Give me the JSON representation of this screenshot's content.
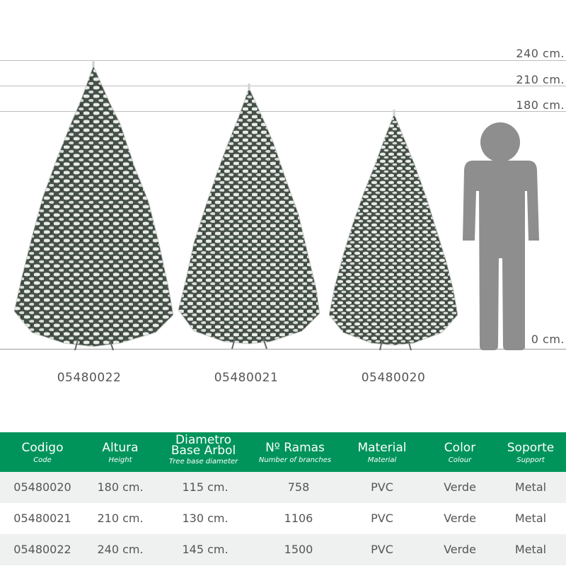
{
  "height_markers": [
    {
      "label": "240 cm."
    },
    {
      "label": "210 cm."
    },
    {
      "label": "180 cm."
    },
    {
      "label": "0 cm."
    }
  ],
  "trees": [
    {
      "code": "05480022"
    },
    {
      "code": "05480021"
    },
    {
      "code": "05480020"
    }
  ],
  "colors": {
    "header_green": "#00945a",
    "row_alt": "#eef1f0",
    "person": "#8e8e8e",
    "foliage_dark": "#3f4a42",
    "snow": "#e9ece8"
  },
  "table": {
    "headers": [
      {
        "main": "Codigo",
        "sub": "Code"
      },
      {
        "main": "Altura",
        "sub": "Height"
      },
      {
        "main": "Diametro Base Arbol",
        "sub": "Tree base diameter"
      },
      {
        "main": "Nº Ramas",
        "sub": "Number of branches"
      },
      {
        "main": "Material",
        "sub": "Material"
      },
      {
        "main": "Color",
        "sub": "Colour"
      },
      {
        "main": "Soporte",
        "sub": "Support"
      }
    ],
    "rows": [
      [
        "05480020",
        "180 cm.",
        "115 cm.",
        "758",
        "PVC",
        "Verde",
        "Metal"
      ],
      [
        "05480021",
        "210 cm.",
        "130 cm.",
        "1106",
        "PVC",
        "Verde",
        "Metal"
      ],
      [
        "05480022",
        "240 cm.",
        "145 cm.",
        "1500",
        "PVC",
        "Verde",
        "Metal"
      ]
    ]
  }
}
